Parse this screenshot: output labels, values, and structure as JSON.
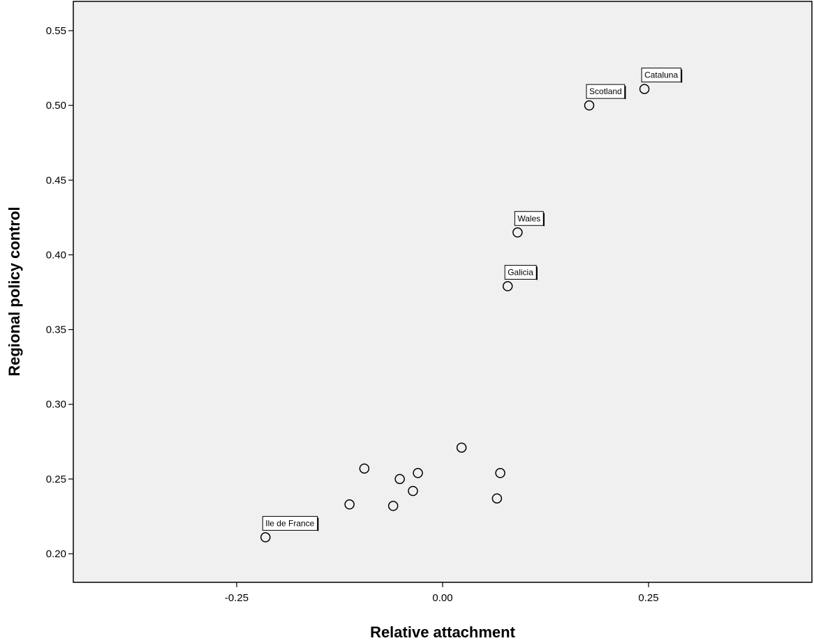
{
  "chart_data": {
    "type": "scatter",
    "title": "",
    "xlabel": "Relative attachment",
    "ylabel": "Regional policy control",
    "xlim": [
      -0.45,
      0.45
    ],
    "ylim": [
      0.18,
      0.57
    ],
    "x_ticks": [
      -0.25,
      0.0,
      0.25
    ],
    "x_tick_labels": [
      "-0.25",
      "0.00",
      "0.25"
    ],
    "y_ticks": [
      0.2,
      0.25,
      0.3,
      0.35,
      0.4,
      0.45,
      0.5,
      0.55
    ],
    "y_tick_labels": [
      "0.20",
      "0.25",
      "0.30",
      "0.35",
      "0.40",
      "0.45",
      "0.50",
      "0.55"
    ],
    "grid": false,
    "colors": {
      "plot_background": "#f0f0f0",
      "marker_stroke": "#000000",
      "axis": "#000000"
    },
    "points": [
      {
        "x": 0.245,
        "y": 0.511,
        "label": "Cataluna"
      },
      {
        "x": 0.178,
        "y": 0.5,
        "label": "Scotland"
      },
      {
        "x": 0.091,
        "y": 0.415,
        "label": "Wales"
      },
      {
        "x": 0.079,
        "y": 0.379,
        "label": "Galicia"
      },
      {
        "x": -0.215,
        "y": 0.211,
        "label": "Ile de France"
      },
      {
        "x": 0.023,
        "y": 0.271,
        "label": ""
      },
      {
        "x": -0.095,
        "y": 0.257,
        "label": ""
      },
      {
        "x": -0.052,
        "y": 0.25,
        "label": ""
      },
      {
        "x": -0.03,
        "y": 0.254,
        "label": ""
      },
      {
        "x": 0.07,
        "y": 0.254,
        "label": ""
      },
      {
        "x": -0.036,
        "y": 0.242,
        "label": ""
      },
      {
        "x": 0.066,
        "y": 0.237,
        "label": ""
      },
      {
        "x": -0.113,
        "y": 0.233,
        "label": ""
      },
      {
        "x": -0.06,
        "y": 0.232,
        "label": ""
      }
    ]
  }
}
